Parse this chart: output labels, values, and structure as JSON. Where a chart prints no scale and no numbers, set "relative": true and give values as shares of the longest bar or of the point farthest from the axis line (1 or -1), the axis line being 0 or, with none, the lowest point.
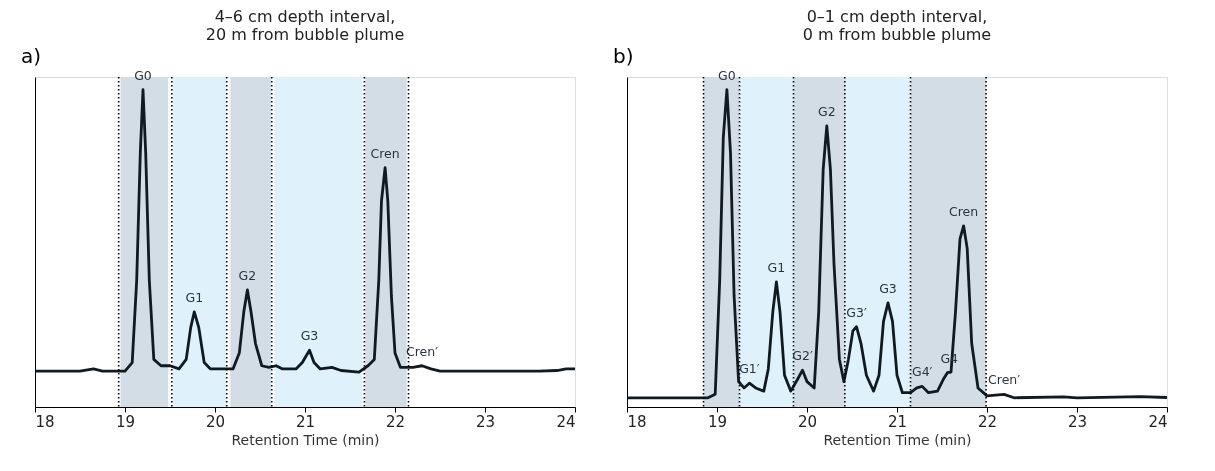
{
  "chart_data": [
    {
      "type": "line",
      "title": "4–6 cm depth interval,\n20 m from bubble plume",
      "xlabel": "Retention Time (min)",
      "relative": true,
      "xlim": [
        18,
        24
      ],
      "xticks": [
        18,
        19,
        20,
        21,
        22,
        23,
        24
      ],
      "x": [
        18.0,
        18.5,
        18.65,
        18.75,
        19.0,
        19.08,
        19.13,
        19.17,
        19.2,
        19.23,
        19.27,
        19.32,
        19.4,
        19.5,
        19.6,
        19.68,
        19.73,
        19.77,
        19.82,
        19.88,
        19.95,
        20.1,
        20.2,
        20.27,
        20.32,
        20.36,
        20.4,
        20.45,
        20.52,
        20.6,
        20.68,
        20.75,
        20.9,
        20.97,
        21.05,
        21.1,
        21.17,
        21.3,
        21.4,
        21.6,
        21.7,
        21.77,
        21.82,
        21.85,
        21.89,
        21.92,
        21.96,
        22.0,
        22.06,
        22.2,
        22.3,
        22.4,
        22.5,
        23.0,
        23.6,
        23.8,
        23.9,
        24.0
      ],
      "series": [
        {
          "color": "#111a20",
          "values": [
            0.113,
            0.113,
            0.12,
            0.113,
            0.113,
            0.14,
            0.4,
            0.8,
            1.0,
            0.8,
            0.4,
            0.15,
            0.13,
            0.13,
            0.12,
            0.15,
            0.25,
            0.3,
            0.25,
            0.14,
            0.12,
            0.12,
            0.12,
            0.17,
            0.3,
            0.369,
            0.3,
            0.2,
            0.13,
            0.125,
            0.13,
            0.12,
            0.12,
            0.14,
            0.179,
            0.14,
            0.12,
            0.125,
            0.115,
            0.11,
            0.13,
            0.15,
            0.4,
            0.65,
            0.754,
            0.65,
            0.35,
            0.17,
            0.125,
            0.125,
            0.13,
            0.12,
            0.113,
            0.113,
            0.113,
            0.115,
            0.12,
            0.12
          ]
        }
      ],
      "bands": [
        {
          "axis": "x",
          "from": 18.95,
          "to": 19.48,
          "color": "#d3dde6"
        },
        {
          "axis": "x",
          "from": 19.53,
          "to": 20.12,
          "color": "#dff2fc"
        },
        {
          "axis": "x",
          "from": 20.17,
          "to": 20.62,
          "color": "#d3dde6"
        },
        {
          "axis": "x",
          "from": 20.66,
          "to": 21.64,
          "color": "#dff2fc"
        },
        {
          "axis": "x",
          "from": 21.67,
          "to": 22.13,
          "color": "#d3dde6"
        }
      ],
      "ref_lines": [
        {
          "axis": "x",
          "value": 18.93,
          "line_style": "dotted"
        },
        {
          "axis": "x",
          "value": 19.52,
          "line_style": "dotted"
        },
        {
          "axis": "x",
          "value": 20.13,
          "line_style": "dotted"
        },
        {
          "axis": "x",
          "value": 20.63,
          "line_style": "dotted"
        },
        {
          "axis": "x",
          "value": 21.66,
          "line_style": "dotted"
        },
        {
          "axis": "x",
          "value": 22.15,
          "line_style": "dotted"
        }
      ],
      "annotations": [
        "a)",
        {
          "text": "G0",
          "x": 19.2,
          "y": 1.0
        },
        {
          "text": "G1",
          "x": 19.77,
          "y": 0.3
        },
        {
          "text": "G2",
          "x": 20.36,
          "y": 0.369
        },
        {
          "text": "G3",
          "x": 21.05,
          "y": 0.179
        },
        {
          "text": "Cren",
          "x": 21.89,
          "y": 0.754
        },
        {
          "text": "Cren′",
          "x": 22.3,
          "y": 0.13
        }
      ]
    },
    {
      "type": "line",
      "title": "0–1 cm depth interval,\n0 m from bubble plume",
      "xlabel": "Retention Time (min)",
      "relative": true,
      "xlim": [
        18,
        24
      ],
      "xticks": [
        18,
        19,
        20,
        21,
        22,
        23,
        24
      ],
      "x": [
        18.0,
        18.9,
        18.98,
        19.03,
        19.07,
        19.11,
        19.15,
        19.19,
        19.24,
        19.3,
        19.36,
        19.43,
        19.52,
        19.57,
        19.62,
        19.66,
        19.7,
        19.75,
        19.82,
        19.9,
        19.95,
        20.0,
        20.08,
        20.13,
        20.18,
        20.22,
        20.26,
        20.3,
        20.36,
        20.41,
        20.46,
        20.51,
        20.55,
        20.6,
        20.66,
        20.74,
        20.8,
        20.85,
        20.9,
        20.95,
        21.0,
        21.06,
        21.15,
        21.22,
        21.28,
        21.35,
        21.45,
        21.52,
        21.56,
        21.6,
        21.65,
        21.7,
        21.74,
        21.78,
        21.83,
        21.9,
        22.0,
        22.19,
        22.3,
        22.85,
        23.0,
        23.7,
        24.0
      ],
      "series": [
        {
          "color": "#111a20",
          "values": [
            0.029,
            0.029,
            0.04,
            0.4,
            0.85,
            1.0,
            0.8,
            0.35,
            0.08,
            0.06,
            0.075,
            0.06,
            0.05,
            0.12,
            0.3,
            0.394,
            0.3,
            0.1,
            0.05,
            0.09,
            0.116,
            0.08,
            0.06,
            0.3,
            0.75,
            0.886,
            0.75,
            0.45,
            0.15,
            0.08,
            0.15,
            0.24,
            0.253,
            0.2,
            0.1,
            0.05,
            0.1,
            0.27,
            0.328,
            0.27,
            0.1,
            0.045,
            0.045,
            0.06,
            0.065,
            0.045,
            0.05,
            0.09,
            0.108,
            0.11,
            0.3,
            0.53,
            0.571,
            0.5,
            0.2,
            0.06,
            0.035,
            0.04,
            0.029,
            0.032,
            0.029,
            0.033,
            0.03
          ]
        }
      ],
      "bands": [
        {
          "axis": "x",
          "from": 18.85,
          "to": 19.25,
          "color": "#d3dde6"
        },
        {
          "axis": "x",
          "from": 19.25,
          "to": 19.85,
          "color": "#dff2fc"
        },
        {
          "axis": "x",
          "from": 19.85,
          "to": 20.42,
          "color": "#d3dde6"
        },
        {
          "axis": "x",
          "from": 20.42,
          "to": 21.15,
          "color": "#dff2fc"
        },
        {
          "axis": "x",
          "from": 21.15,
          "to": 21.99,
          "color": "#d3dde6"
        }
      ],
      "ref_lines": [
        {
          "axis": "x",
          "value": 18.85,
          "line_style": "dotted"
        },
        {
          "axis": "x",
          "value": 19.25,
          "line_style": "dotted"
        },
        {
          "axis": "x",
          "value": 19.85,
          "line_style": "dotted"
        },
        {
          "axis": "x",
          "value": 20.42,
          "line_style": "dotted"
        },
        {
          "axis": "x",
          "value": 21.15,
          "line_style": "dotted"
        },
        {
          "axis": "x",
          "value": 21.99,
          "line_style": "dotted"
        }
      ],
      "annotations": [
        "b)",
        {
          "text": "G0",
          "x": 19.11,
          "y": 1.0
        },
        {
          "text": "G1′",
          "x": 19.36,
          "y": 0.075
        },
        {
          "text": "G1",
          "x": 19.66,
          "y": 0.394
        },
        {
          "text": "G2′",
          "x": 19.95,
          "y": 0.116
        },
        {
          "text": "G2",
          "x": 20.22,
          "y": 0.886
        },
        {
          "text": "G3′",
          "x": 20.55,
          "y": 0.253
        },
        {
          "text": "G3",
          "x": 20.9,
          "y": 0.328
        },
        {
          "text": "G4′",
          "x": 21.28,
          "y": 0.065
        },
        {
          "text": "G4",
          "x": 21.58,
          "y": 0.108
        },
        {
          "text": "Cren",
          "x": 21.74,
          "y": 0.571
        },
        {
          "text": "Cren′",
          "x": 22.19,
          "y": 0.04
        }
      ]
    }
  ]
}
